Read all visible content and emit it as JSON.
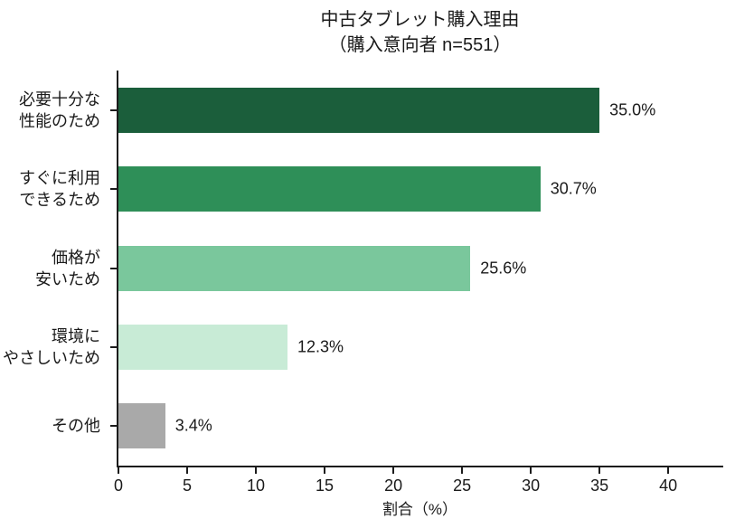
{
  "chart_data": {
    "type": "bar",
    "orientation": "horizontal",
    "title": "中古タブレット購入理由",
    "subtitle": "（購入意向者 n=551）",
    "categories": [
      "必要十分な\n性能のため",
      "すぐに利用\nできるため",
      "価格が\n安いため",
      "環境に\nやさしいため",
      "その他"
    ],
    "values": [
      35.0,
      30.7,
      25.6,
      12.3,
      3.4
    ],
    "value_labels": [
      "35.0%",
      "30.7%",
      "25.6%",
      "12.3%",
      "3.4%"
    ],
    "bar_colors": [
      "#1b5e3b",
      "#2e8f58",
      "#7ac79c",
      "#c8ebd6",
      "#a9a9a9"
    ],
    "xlabel": "割合（%）",
    "x_ticks": [
      0,
      5,
      10,
      15,
      20,
      25,
      30,
      35,
      40
    ],
    "xlim": [
      0,
      44
    ],
    "grid": false,
    "legend": null,
    "axis_color": "#1c1c1c",
    "text_color": "#1a1a1a",
    "background_color": "#ffffff"
  }
}
